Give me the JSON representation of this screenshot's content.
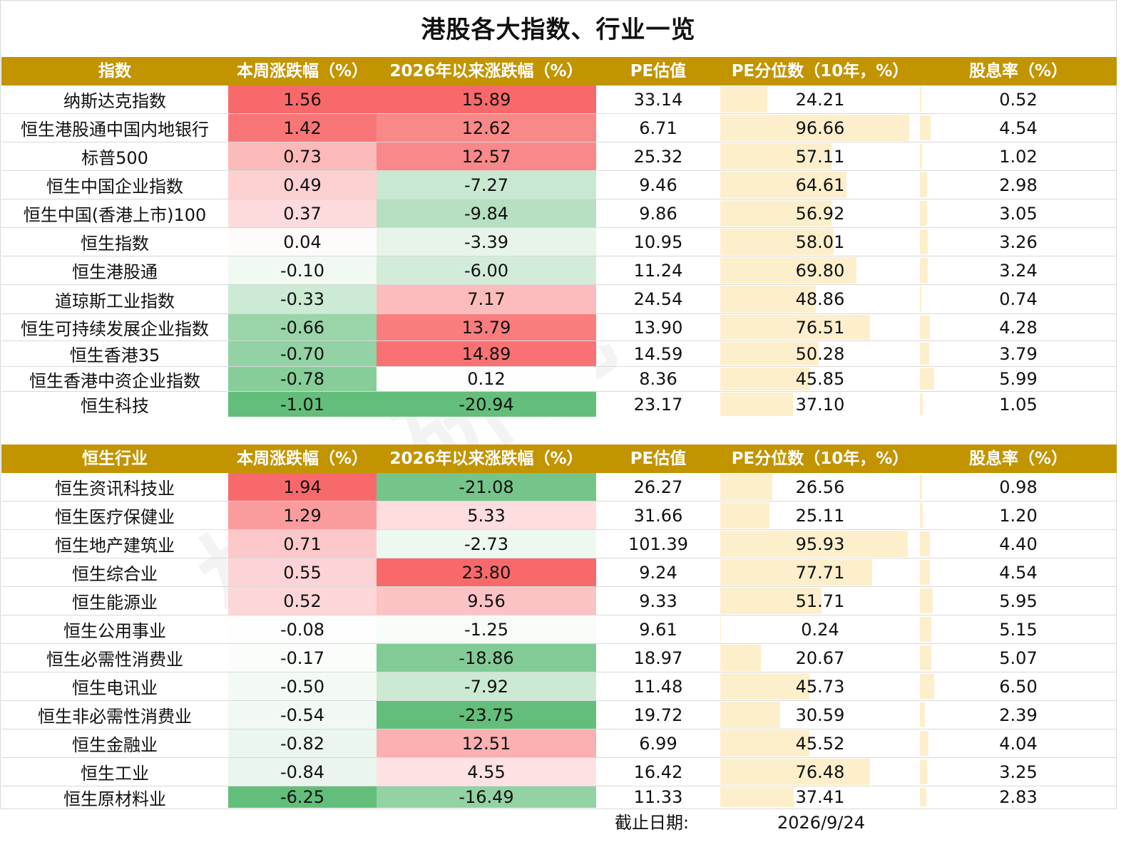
{
  "title": "港股各大指数、行业一览",
  "headers": {
    "index_section": [
      "指数",
      "本周涨跌幅（%）",
      "2026年以来涨跌幅（%）",
      "PE估值",
      "PE分位数（10年，%）",
      "股息率（%）"
    ],
    "industry_section": [
      "恒生行业",
      "本周涨跌幅（%）",
      "2026年以来涨跌幅（%）",
      "PE估值",
      "PE分位数（10年，%）",
      "股息率（%）"
    ]
  },
  "colors": {
    "header_bg": "#c29400",
    "header_text": "#ffffff",
    "positive_scale": "red",
    "negative_scale": "green",
    "databar": "#fdefcc"
  },
  "index_rows": [
    {
      "name": "纳斯达克指数",
      "week": "1.56",
      "ytd": "15.89",
      "pe": "33.14",
      "pe_pct": "24.21",
      "dy": "0.52"
    },
    {
      "name": "恒生港股通中国内地银行",
      "week": "1.42",
      "ytd": "12.62",
      "pe": "6.71",
      "pe_pct": "96.66",
      "dy": "4.54"
    },
    {
      "name": "标普500",
      "week": "0.73",
      "ytd": "12.57",
      "pe": "25.32",
      "pe_pct": "57.11",
      "dy": "1.02"
    },
    {
      "name": "恒生中国企业指数",
      "week": "0.49",
      "ytd": "-7.27",
      "pe": "9.46",
      "pe_pct": "64.61",
      "dy": "2.98"
    },
    {
      "name": "恒生中国(香港上市)100",
      "week": "0.37",
      "ytd": "-9.84",
      "pe": "9.86",
      "pe_pct": "56.92",
      "dy": "3.05"
    },
    {
      "name": "恒生指数",
      "week": "0.04",
      "ytd": "-3.39",
      "pe": "10.95",
      "pe_pct": "58.01",
      "dy": "3.26"
    },
    {
      "name": "恒生港股通",
      "week": "-0.10",
      "ytd": "-6.00",
      "pe": "11.24",
      "pe_pct": "69.80",
      "dy": "3.24"
    },
    {
      "name": "道琼斯工业指数",
      "week": "-0.33",
      "ytd": "7.17",
      "pe": "24.54",
      "pe_pct": "48.86",
      "dy": "0.74"
    },
    {
      "name": "恒生可持续发展企业指数",
      "week": "-0.66",
      "ytd": "13.79",
      "pe": "13.90",
      "pe_pct": "76.51",
      "dy": "4.28"
    },
    {
      "name": "恒生香港35",
      "week": "-0.70",
      "ytd": "14.89",
      "pe": "14.59",
      "pe_pct": "50.28",
      "dy": "3.79"
    },
    {
      "name": "恒生香港中资企业指数",
      "week": "-0.78",
      "ytd": "0.12",
      "pe": "8.36",
      "pe_pct": "45.85",
      "dy": "5.99"
    },
    {
      "name": "恒生科技",
      "week": "-1.01",
      "ytd": "-20.94",
      "pe": "23.17",
      "pe_pct": "37.10",
      "dy": "1.05"
    }
  ],
  "industry_rows": [
    {
      "name": "恒生资讯科技业",
      "week": "1.94",
      "ytd": "-21.08",
      "pe": "26.27",
      "pe_pct": "26.56",
      "dy": "0.98"
    },
    {
      "name": "恒生医疗保健业",
      "week": "1.29",
      "ytd": "5.33",
      "pe": "31.66",
      "pe_pct": "25.11",
      "dy": "1.20"
    },
    {
      "name": "恒生地产建筑业",
      "week": "0.71",
      "ytd": "-2.73",
      "pe": "101.39",
      "pe_pct": "95.93",
      "dy": "4.40"
    },
    {
      "name": "恒生综合业",
      "week": "0.55",
      "ytd": "23.80",
      "pe": "9.24",
      "pe_pct": "77.71",
      "dy": "4.54"
    },
    {
      "name": "恒生能源业",
      "week": "0.52",
      "ytd": "9.56",
      "pe": "9.33",
      "pe_pct": "51.71",
      "dy": "5.95"
    },
    {
      "name": "恒生公用事业",
      "week": "-0.08",
      "ytd": "-1.25",
      "pe": "9.61",
      "pe_pct": "0.24",
      "dy": "5.15"
    },
    {
      "name": "恒生必需性消费业",
      "week": "-0.17",
      "ytd": "-18.86",
      "pe": "18.97",
      "pe_pct": "20.67",
      "dy": "5.07"
    },
    {
      "name": "恒生电讯业",
      "week": "-0.50",
      "ytd": "-7.92",
      "pe": "11.48",
      "pe_pct": "45.73",
      "dy": "6.50"
    },
    {
      "name": "恒生非必需性消费业",
      "week": "-0.54",
      "ytd": "-23.75",
      "pe": "19.72",
      "pe_pct": "30.59",
      "dy": "2.39"
    },
    {
      "name": "恒生金融业",
      "week": "-0.82",
      "ytd": "12.51",
      "pe": "6.99",
      "pe_pct": "45.52",
      "dy": "4.04"
    },
    {
      "name": "恒生工业",
      "week": "-0.84",
      "ytd": "4.55",
      "pe": "16.42",
      "pe_pct": "76.48",
      "dy": "3.25"
    },
    {
      "name": "恒生原材料业",
      "week": "-6.25",
      "ytd": "-16.49",
      "pe": "11.33",
      "pe_pct": "37.41",
      "dy": "2.83"
    }
  ],
  "footer": {
    "label": "截止日期:",
    "date": "2026/9/24"
  },
  "watermark": "格上研究"
}
